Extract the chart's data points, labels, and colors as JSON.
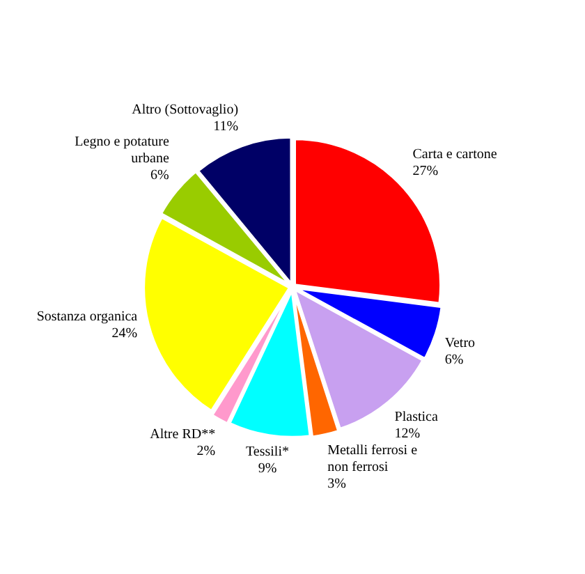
{
  "chart_data": {
    "type": "pie",
    "categories": [
      "Carta e cartone",
      "Vetro",
      "Plastica",
      "Metalli ferrosi e non ferrosi",
      "Tessili*",
      "Altre RD**",
      "Sostanza organica",
      "Legno e potature urbane",
      "Altro (Sottovaglio)"
    ],
    "values": [
      27,
      6,
      12,
      3,
      9,
      2,
      24,
      6,
      11
    ],
    "value_labels": [
      "27%",
      "6%",
      "12%",
      "3%",
      "9%",
      "2%",
      "24%",
      "6%",
      "11%"
    ],
    "colors": [
      "#ff0000",
      "#0000ff",
      "#c8a0f0",
      "#ff6600",
      "#00ffff",
      "#ff99cc",
      "#ffff00",
      "#99cc00",
      "#000066"
    ],
    "legend": false
  }
}
